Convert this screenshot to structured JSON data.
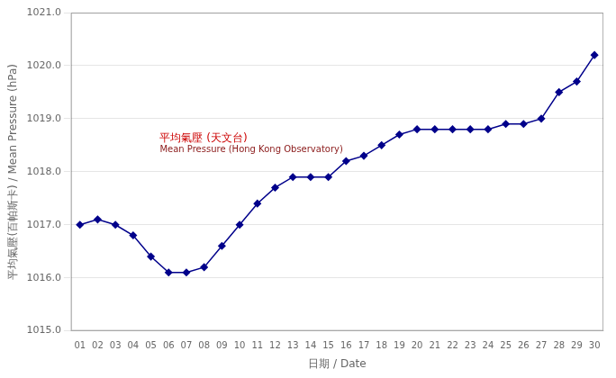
{
  "chart_data": {
    "type": "line",
    "xlabel": "日期 / Date",
    "ylabel": "平均氣壓(百帕斯卡) / Mean Pressure (hPa)",
    "x": [
      1,
      2,
      3,
      4,
      5,
      6,
      7,
      8,
      9,
      10,
      11,
      12,
      13,
      14,
      15,
      16,
      17,
      18,
      19,
      20,
      21,
      22,
      23,
      24,
      25,
      26,
      27,
      28,
      29,
      30
    ],
    "series": [
      {
        "color": "#00008B",
        "marker": "diamond",
        "values": [
          1017.0,
          1017.1,
          1017.0,
          1016.8,
          1016.4,
          1016.1,
          1016.1,
          1016.2,
          1016.6,
          1017.0,
          1017.4,
          1017.7,
          1017.9,
          1017.9,
          1017.9,
          1018.2,
          1018.3,
          1018.5,
          1018.7,
          1018.8,
          1018.8,
          1018.8,
          1018.8,
          1018.8,
          1018.9,
          1018.9,
          1019.0,
          1019.5,
          1019.7,
          1020.2
        ]
      }
    ],
    "xlim": [
      0.5,
      30.5
    ],
    "xticks": [
      {
        "value": 1,
        "label": "01"
      },
      {
        "value": 2,
        "label": "02"
      },
      {
        "value": 3,
        "label": "03"
      },
      {
        "value": 4,
        "label": "04"
      },
      {
        "value": 5,
        "label": "05"
      },
      {
        "value": 6,
        "label": "06"
      },
      {
        "value": 7,
        "label": "07"
      },
      {
        "value": 8,
        "label": "08"
      },
      {
        "value": 9,
        "label": "09"
      },
      {
        "value": 10,
        "label": "10"
      },
      {
        "value": 11,
        "label": "11"
      },
      {
        "value": 12,
        "label": "12"
      },
      {
        "value": 13,
        "label": "13"
      },
      {
        "value": 14,
        "label": "14"
      },
      {
        "value": 15,
        "label": "15"
      },
      {
        "value": 16,
        "label": "16"
      },
      {
        "value": 17,
        "label": "17"
      },
      {
        "value": 18,
        "label": "18"
      },
      {
        "value": 19,
        "label": "19"
      },
      {
        "value": 20,
        "label": "20"
      },
      {
        "value": 21,
        "label": "21"
      },
      {
        "value": 22,
        "label": "22"
      },
      {
        "value": 23,
        "label": "23"
      },
      {
        "value": 24,
        "label": "24"
      },
      {
        "value": 25,
        "label": "25"
      },
      {
        "value": 26,
        "label": "26"
      },
      {
        "value": 27,
        "label": "27"
      },
      {
        "value": 28,
        "label": "28"
      },
      {
        "value": 29,
        "label": "29"
      },
      {
        "value": 30,
        "label": "30"
      }
    ],
    "ylim": [
      1015.0,
      1021.0
    ],
    "yticks": [
      {
        "value": 1015.0,
        "label": "1015.0"
      },
      {
        "value": 1016.0,
        "label": "1016.0"
      },
      {
        "value": 1017.0,
        "label": "1017.0"
      },
      {
        "value": 1018.0,
        "label": "1018.0"
      },
      {
        "value": 1019.0,
        "label": "1019.0"
      },
      {
        "value": 1020.0,
        "label": "1020.0"
      },
      {
        "value": 1021.0,
        "label": "1021.0"
      }
    ],
    "grid": "y",
    "annotations": [
      {
        "text": "平均氣壓 (天文台)",
        "x": 5.5,
        "y": 1018.58,
        "color": "#CC0000"
      },
      {
        "text": "Mean Pressure (Hong Kong Observatory)",
        "x": 5.5,
        "y": 1018.37,
        "color": "#8B1A1A"
      }
    ]
  }
}
